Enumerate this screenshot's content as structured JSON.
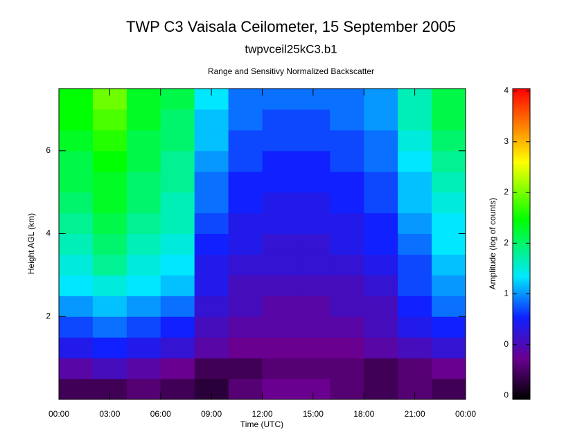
{
  "chart_data": {
    "type": "heatmap",
    "title": "TWP C3 Vaisala Ceilometer, 15 September 2005",
    "subtitle": "twpvceil25kC3.b1",
    "plot_title": "Range and Sensitivy Normalized Backscatter",
    "xlabel": "Time (UTC)",
    "ylabel": "Height AGL (km)",
    "colorbar_label": "Amplitude (log of counts)",
    "x": [
      1,
      3,
      5,
      7,
      9,
      11,
      13,
      15,
      17,
      19,
      21,
      23
    ],
    "y": [
      0.25,
      0.75,
      1.25,
      1.75,
      2.25,
      2.75,
      3.25,
      3.75,
      4.25,
      4.75,
      5.25,
      5.75,
      6.25,
      6.75,
      7.25
    ],
    "z": [
      [
        0.1,
        0.1,
        0.2,
        0.1,
        0.0,
        0.2,
        0.3,
        0.3,
        0.2,
        0.1,
        0.2,
        0.1
      ],
      [
        0.4,
        0.5,
        0.4,
        0.3,
        0.1,
        0.1,
        0.2,
        0.2,
        0.2,
        0.1,
        0.2,
        0.3
      ],
      [
        0.7,
        0.8,
        0.7,
        0.6,
        0.4,
        0.3,
        0.3,
        0.3,
        0.3,
        0.4,
        0.5,
        0.6
      ],
      [
        0.9,
        1.0,
        0.9,
        0.8,
        0.5,
        0.4,
        0.4,
        0.4,
        0.4,
        0.5,
        0.7,
        0.8
      ],
      [
        1.1,
        1.2,
        1.1,
        1.0,
        0.6,
        0.5,
        0.4,
        0.4,
        0.5,
        0.5,
        0.8,
        1.0
      ],
      [
        1.3,
        1.4,
        1.3,
        1.2,
        0.7,
        0.5,
        0.5,
        0.5,
        0.5,
        0.6,
        0.9,
        1.1
      ],
      [
        1.4,
        1.6,
        1.4,
        1.3,
        0.7,
        0.6,
        0.6,
        0.6,
        0.6,
        0.7,
        0.9,
        1.2
      ],
      [
        1.5,
        1.7,
        1.5,
        1.4,
        0.8,
        0.7,
        0.6,
        0.6,
        0.7,
        0.8,
        1.0,
        1.3
      ],
      [
        1.6,
        1.8,
        1.6,
        1.5,
        0.9,
        0.7,
        0.7,
        0.7,
        0.7,
        0.8,
        1.1,
        1.3
      ],
      [
        1.7,
        1.9,
        1.7,
        1.5,
        1.0,
        0.8,
        0.7,
        0.7,
        0.8,
        0.9,
        1.2,
        1.4
      ],
      [
        1.8,
        1.9,
        1.7,
        1.6,
        1.0,
        0.8,
        0.8,
        0.8,
        0.8,
        0.9,
        1.2,
        1.5
      ],
      [
        1.8,
        2.0,
        1.8,
        1.6,
        1.1,
        0.9,
        0.8,
        0.8,
        0.9,
        1.0,
        1.3,
        1.6
      ],
      [
        1.9,
        2.1,
        1.8,
        1.7,
        1.2,
        0.9,
        0.9,
        0.9,
        0.9,
        1.0,
        1.4,
        1.7
      ],
      [
        2.0,
        2.2,
        1.9,
        1.7,
        1.2,
        1.0,
        0.9,
        0.9,
        1.0,
        1.1,
        1.5,
        1.8
      ],
      [
        2.0,
        2.3,
        1.9,
        1.8,
        1.3,
        1.0,
        1.0,
        1.0,
        1.0,
        1.1,
        1.5,
        1.8
      ]
    ],
    "xlim": [
      0,
      24
    ],
    "xticks": [
      {
        "value": 0,
        "label": "00:00"
      },
      {
        "value": 3,
        "label": "03:00"
      },
      {
        "value": 6,
        "label": "06:00"
      },
      {
        "value": 9,
        "label": "09:00"
      },
      {
        "value": 12,
        "label": "12:00"
      },
      {
        "value": 15,
        "label": "15:00"
      },
      {
        "value": 18,
        "label": "18:00"
      },
      {
        "value": 21,
        "label": "21:00"
      },
      {
        "value": 24,
        "label": "00:00"
      }
    ],
    "ylim": [
      0,
      7.5
    ],
    "yticks": [
      2,
      4,
      6
    ],
    "zlim": [
      -0.2,
      3.6
    ],
    "zticks": [
      {
        "value": -0.15,
        "label": "0"
      },
      {
        "value": 0.47,
        "label": "0"
      },
      {
        "value": 1.09,
        "label": "1"
      },
      {
        "value": 1.71,
        "label": "2"
      },
      {
        "value": 2.33,
        "label": "2"
      },
      {
        "value": 2.95,
        "label": "3"
      },
      {
        "value": 3.57,
        "label": "4"
      }
    ],
    "colorscale": [
      [
        -0.2,
        "#000000"
      ],
      [
        0.3,
        "#6a0090"
      ],
      [
        0.8,
        "#1020ff"
      ],
      [
        1.3,
        "#00e8ff"
      ],
      [
        2.0,
        "#00ff00"
      ],
      [
        2.7,
        "#ffff00"
      ],
      [
        3.6,
        "#ff0000"
      ]
    ]
  }
}
